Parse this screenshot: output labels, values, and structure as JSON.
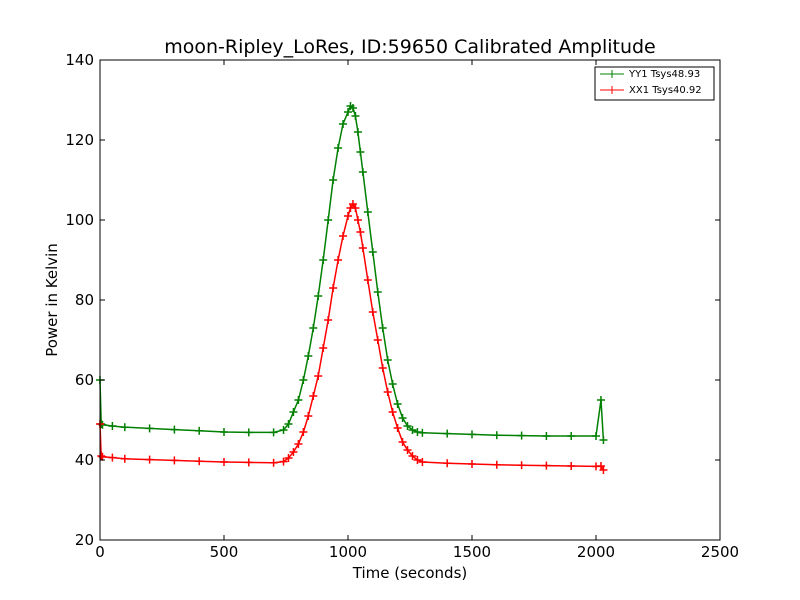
{
  "chart_data": {
    "type": "line",
    "title": "moon-Ripley_LoRes, ID:59650 Calibrated Amplitude",
    "xlabel": "Time (seconds)",
    "ylabel": "Power in Kelvin",
    "xlim": [
      0,
      2500
    ],
    "ylim": [
      20,
      140
    ],
    "xticks": [
      "0",
      "500",
      "1000",
      "1500",
      "2000",
      "2500"
    ],
    "yticks": [
      "20",
      "40",
      "60",
      "80",
      "100",
      "120",
      "140"
    ],
    "grid": false,
    "legend_position": "top-right",
    "marker": "+",
    "series": [
      {
        "name": "YY1 Tsys48.93",
        "color": "#008000",
        "x": [
          0,
          5,
          10,
          50,
          100,
          200,
          300,
          400,
          500,
          600,
          700,
          740,
          760,
          780,
          800,
          820,
          840,
          860,
          880,
          900,
          920,
          940,
          960,
          980,
          1000,
          1010,
          1020,
          1030,
          1040,
          1050,
          1060,
          1080,
          1100,
          1120,
          1140,
          1160,
          1180,
          1200,
          1220,
          1240,
          1260,
          1280,
          1300,
          1400,
          1500,
          1600,
          1700,
          1800,
          1900,
          2000,
          2020,
          2030
        ],
        "y": [
          60,
          49,
          48.8,
          48.5,
          48.2,
          47.9,
          47.6,
          47.3,
          47.0,
          46.9,
          46.9,
          47.5,
          49,
          52,
          55,
          60,
          66,
          73,
          81,
          90,
          100,
          110,
          118,
          124,
          127,
          128.5,
          128,
          126,
          122,
          117,
          112,
          102,
          92,
          82,
          73,
          65,
          59,
          54,
          50.5,
          48.5,
          47.5,
          47,
          46.8,
          46.6,
          46.4,
          46.2,
          46.1,
          46.0,
          46.0,
          46,
          55,
          45
        ]
      },
      {
        "name": "XX1 Tsys40.92",
        "color": "#ff0000",
        "x": [
          0,
          5,
          10,
          50,
          100,
          200,
          300,
          400,
          500,
          600,
          700,
          740,
          760,
          780,
          800,
          820,
          840,
          860,
          880,
          900,
          920,
          940,
          960,
          980,
          1000,
          1010,
          1020,
          1030,
          1040,
          1050,
          1060,
          1080,
          1100,
          1120,
          1140,
          1160,
          1180,
          1200,
          1220,
          1240,
          1260,
          1280,
          1300,
          1400,
          1500,
          1600,
          1700,
          1800,
          1900,
          2000,
          2020,
          2030
        ],
        "y": [
          49,
          41,
          40.8,
          40.6,
          40.3,
          40.1,
          39.9,
          39.7,
          39.5,
          39.4,
          39.3,
          39.6,
          40.5,
          42,
          44,
          47,
          51,
          56,
          61,
          68,
          75,
          83,
          90,
          96,
          101,
          103,
          104,
          103,
          100,
          97,
          93,
          85,
          77,
          70,
          63,
          57,
          52,
          48,
          44.5,
          42.5,
          41,
          40,
          39.5,
          39.2,
          39.0,
          38.8,
          38.7,
          38.6,
          38.5,
          38.4,
          38.5,
          37.5
        ]
      }
    ]
  }
}
